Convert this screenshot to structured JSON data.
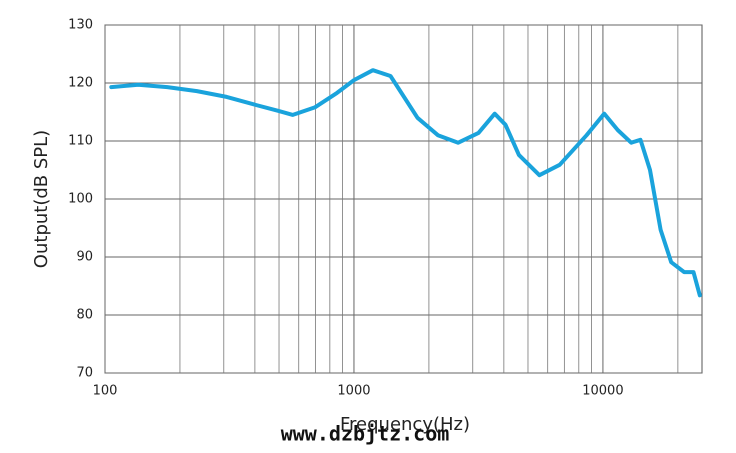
{
  "chart_data": {
    "type": "line",
    "x_label": "Frequency(Hz)",
    "y_label": "Output(dB SPL)",
    "watermark": "www.dzbjtz.com",
    "x_log": true,
    "grid": true,
    "xlim": [
      100,
      25000
    ],
    "xticks": [
      100,
      1000,
      10000
    ],
    "xminorticks": [
      200,
      300,
      400,
      500,
      600,
      700,
      800,
      900,
      2000,
      3000,
      4000,
      5000,
      6000,
      7000,
      8000,
      9000,
      20000
    ],
    "ylim": [
      70,
      130
    ],
    "yticks": [
      70,
      80,
      90,
      100,
      110,
      120,
      130
    ],
    "series": [
      {
        "name": "Output",
        "color": "#1aa3dc",
        "x": [
          106,
          136,
          178,
          234,
          308,
          404,
          496,
          568,
          696,
          855,
          1000,
          1191,
          1402,
          1800,
          2173,
          2623,
          3163,
          3675,
          4063,
          4596,
          5556,
          6705,
          8600,
          10120,
          11460,
          12990,
          14160,
          15460,
          17050,
          18800,
          21200,
          23100,
          24500
        ],
        "values": [
          119.3,
          119.7,
          119.3,
          118.6,
          117.6,
          116.2,
          115.2,
          114.5,
          115.8,
          118.3,
          120.5,
          122.2,
          121.2,
          114,
          111,
          109.7,
          111.4,
          114.7,
          112.8,
          107.6,
          104.1,
          105.9,
          111,
          114.7,
          111.9,
          109.7,
          110.2,
          105,
          94.7,
          89.1,
          87.4,
          87.4,
          83.4
        ]
      }
    ]
  }
}
